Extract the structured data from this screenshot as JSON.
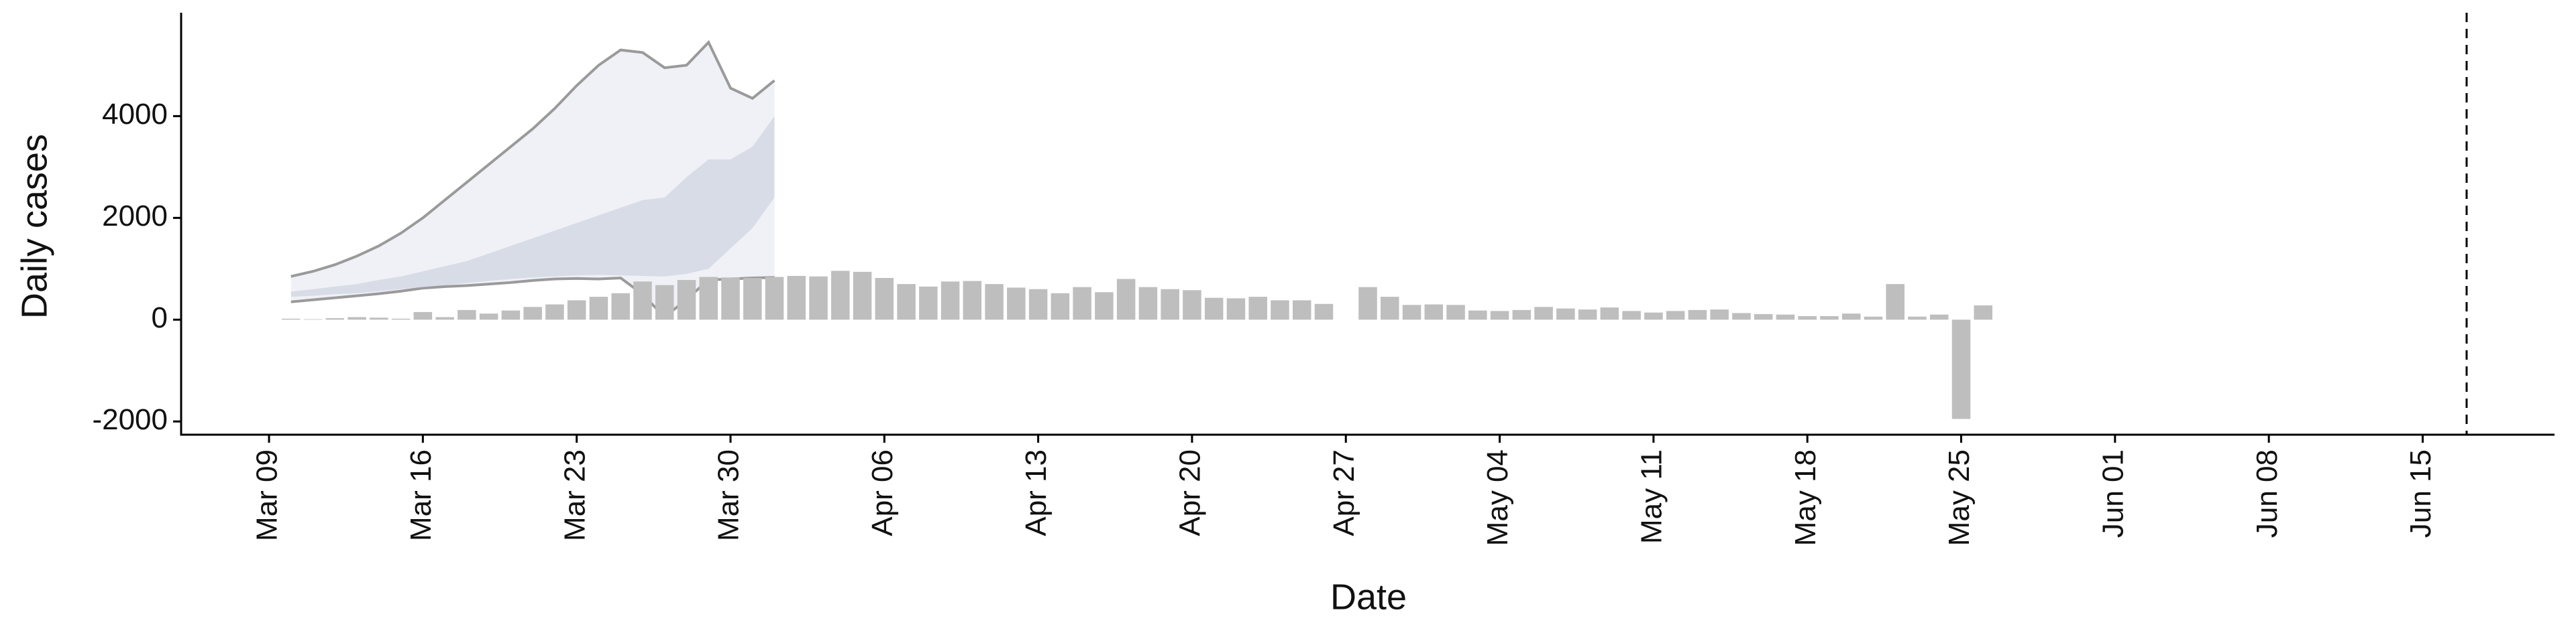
{
  "chart_data": {
    "type": "bar",
    "xlabel": "Date",
    "ylabel": "Daily cases",
    "x": [
      "Mar 10",
      "Mar 11",
      "Mar 12",
      "Mar 13",
      "Mar 14",
      "Mar 15",
      "Mar 16",
      "Mar 17",
      "Mar 18",
      "Mar 19",
      "Mar 20",
      "Mar 21",
      "Mar 22",
      "Mar 23",
      "Mar 24",
      "Mar 25",
      "Mar 26",
      "Mar 27",
      "Mar 28",
      "Mar 29",
      "Mar 30",
      "Mar 31",
      "Apr 01",
      "Apr 02",
      "Apr 03",
      "Apr 04",
      "Apr 05",
      "Apr 06",
      "Apr 07",
      "Apr 08",
      "Apr 09",
      "Apr 10",
      "Apr 11",
      "Apr 12",
      "Apr 13",
      "Apr 14",
      "Apr 15",
      "Apr 16",
      "Apr 17",
      "Apr 18",
      "Apr 19",
      "Apr 20",
      "Apr 21",
      "Apr 22",
      "Apr 23",
      "Apr 24",
      "Apr 25",
      "Apr 26",
      "Apr 27",
      "Apr 28",
      "Apr 29",
      "Apr 30",
      "May 01",
      "May 02",
      "May 03",
      "May 04",
      "May 05",
      "May 06",
      "May 07",
      "May 08",
      "May 09",
      "May 10",
      "May 11",
      "May 12",
      "May 13",
      "May 14",
      "May 15",
      "May 16",
      "May 17",
      "May 18",
      "May 19",
      "May 20",
      "May 21",
      "May 22",
      "May 23",
      "May 24",
      "May 25",
      "May 26"
    ],
    "values": [
      20,
      10,
      30,
      50,
      40,
      20,
      150,
      50,
      190,
      120,
      180,
      250,
      300,
      380,
      450,
      520,
      750,
      680,
      780,
      840,
      830,
      820,
      840,
      860,
      850,
      960,
      940,
      820,
      700,
      650,
      750,
      760,
      700,
      630,
      600,
      520,
      640,
      540,
      800,
      640,
      600,
      580,
      430,
      420,
      450,
      380,
      380,
      310,
      null,
      640,
      450,
      290,
      300,
      290,
      180,
      170,
      190,
      250,
      220,
      200,
      240,
      170,
      140,
      170,
      190,
      200,
      130,
      110,
      100,
      70,
      70,
      120,
      60,
      700,
      60,
      100,
      -1950,
      280
    ],
    "color": "#bebebe",
    "forecast_x": [
      "Mar 10",
      "Mar 11",
      "Mar 12",
      "Mar 13",
      "Mar 14",
      "Mar 15",
      "Mar 16",
      "Mar 17",
      "Mar 18",
      "Mar 19",
      "Mar 20",
      "Mar 21",
      "Mar 22",
      "Mar 23",
      "Mar 24",
      "Mar 25",
      "Mar 26",
      "Mar 27",
      "Mar 28",
      "Mar 29",
      "Mar 30",
      "Mar 31",
      "Apr 01"
    ],
    "bands": [
      {
        "upper": [
          850,
          950,
          1080,
          1250,
          1450,
          1700,
          2000,
          2350,
          2700,
          3050,
          3400,
          3750,
          4150,
          4600,
          5000,
          5300,
          5250,
          4950,
          5000,
          5450,
          4550,
          4350,
          4700
        ],
        "lower": [
          350,
          390,
          430,
          470,
          510,
          560,
          620,
          650,
          670,
          700,
          730,
          770,
          800,
          810,
          800,
          820,
          500,
          50,
          400,
          780,
          800,
          820,
          830
        ],
        "color": "#eef0f5",
        "edge": "#9a9a9a"
      },
      {
        "upper": [
          550,
          600,
          650,
          700,
          780,
          850,
          950,
          1050,
          1150,
          1300,
          1450,
          1600,
          1750,
          1900,
          2050,
          2200,
          2350,
          2400,
          2800,
          3150,
          3150,
          3400,
          4000
        ],
        "lower": [
          450,
          470,
          500,
          520,
          560,
          600,
          640,
          680,
          720,
          760,
          800,
          830,
          850,
          870,
          880,
          870,
          860,
          850,
          900,
          1000,
          1400,
          1800,
          2400
        ],
        "color": "#d5d9e5"
      }
    ],
    "vline": "Jun 17",
    "xlim": [
      "Mar 05",
      "Jun 21"
    ],
    "xticks": [
      "Mar 09",
      "Mar 16",
      "Mar 23",
      "Mar 30",
      "Apr 06",
      "Apr 13",
      "Apr 20",
      "Apr 27",
      "May 04",
      "May 11",
      "May 18",
      "May 25",
      "Jun 01",
      "Jun 08",
      "Jun 15"
    ],
    "ylim": [
      -2260,
      5900
    ],
    "yticks": [
      -2000,
      0,
      2000,
      4000
    ]
  }
}
